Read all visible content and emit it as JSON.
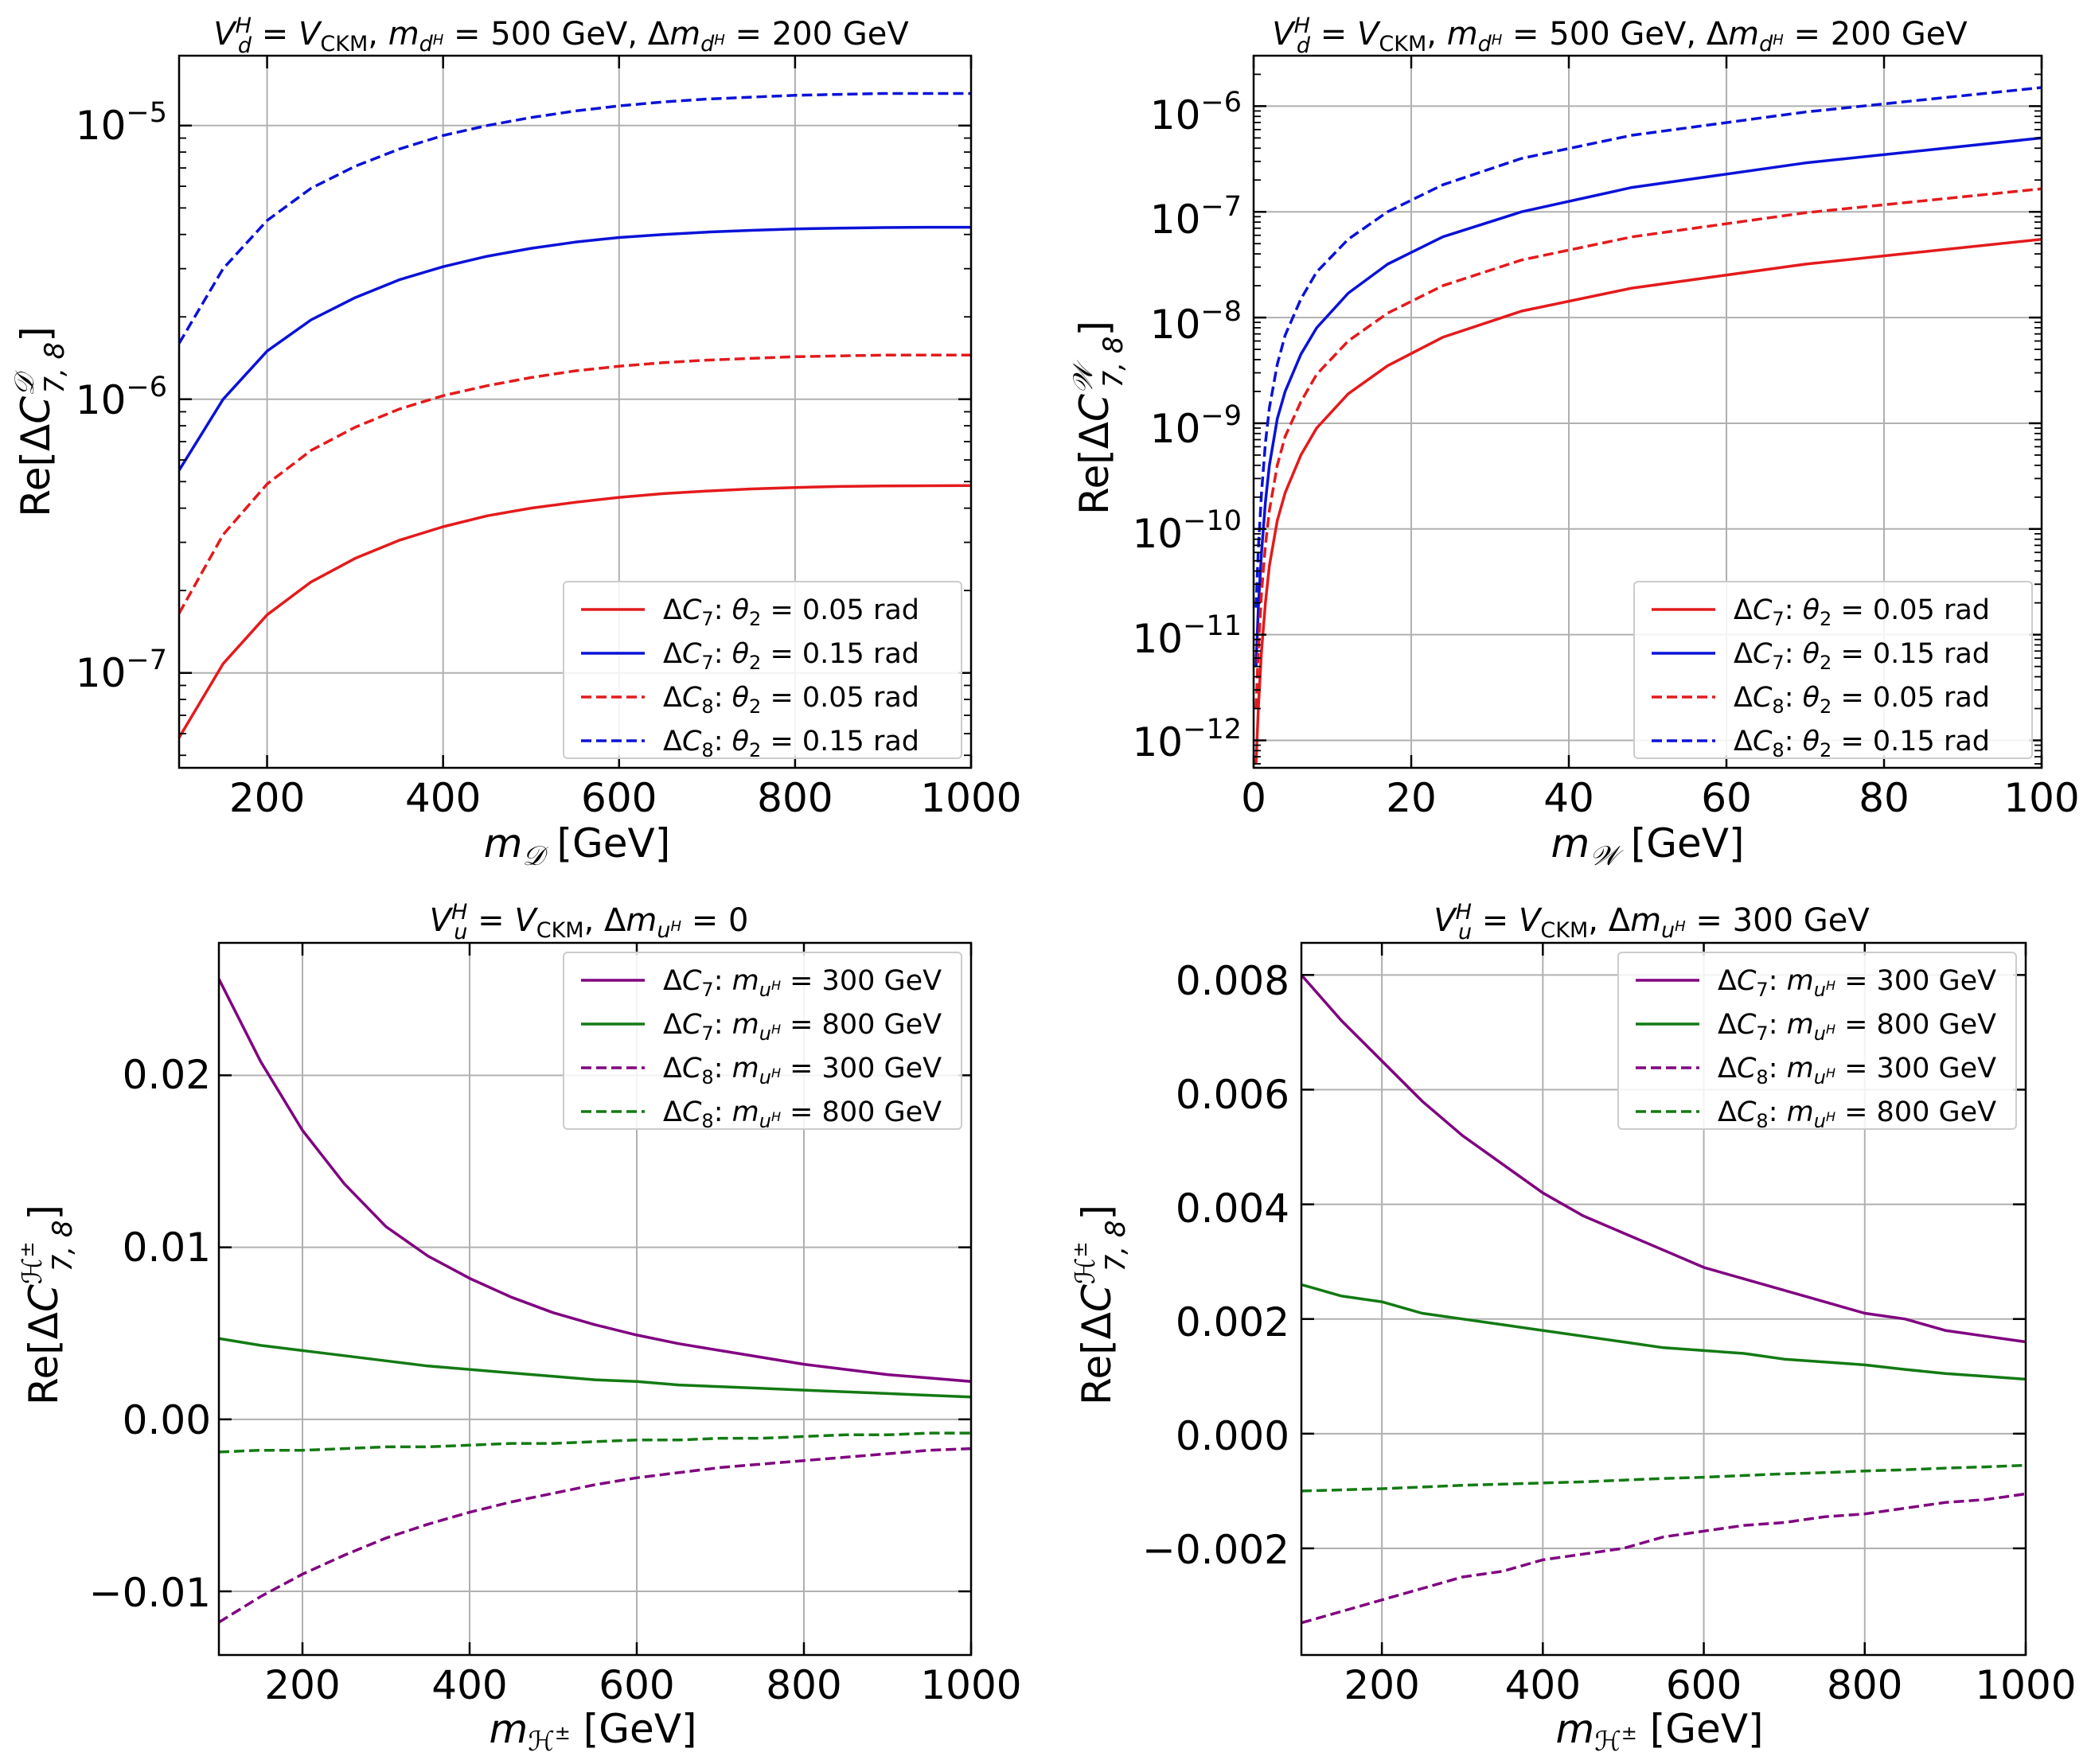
{
  "chart_data": [
    {
      "type": "line",
      "title": "V_d^H = V_CKM, m_{d^H} = 500 GeV, Δm_{d^H} = 200 GeV",
      "xlabel": "m_𝒟 [GeV]",
      "ylabel": "Re[ΔC_{7,8}^𝒟]",
      "xscale": "linear",
      "yscale": "log",
      "xlim": [
        100,
        1000
      ],
      "ylim": [
        4.5e-08,
        1.8e-05
      ],
      "xticks": [
        200,
        400,
        600,
        800,
        1000
      ],
      "yticks": [
        1e-07,
        1e-06,
        1e-05
      ],
      "ytick_labels": [
        {
          "base": "10",
          "exp": "−7"
        },
        {
          "base": "10",
          "exp": "−6"
        },
        {
          "base": "10",
          "exp": "−5"
        }
      ],
      "grid": true,
      "legend_position": "lower-right",
      "x": [
        100,
        150,
        200,
        250,
        300,
        350,
        400,
        450,
        500,
        550,
        600,
        650,
        700,
        750,
        800,
        850,
        900,
        950,
        1000
      ],
      "series": [
        {
          "name": "ΔC₇: θ₂ = 0.05 rad",
          "color": "#e41a1c",
          "dash": "solid",
          "values": [
            5.8e-08,
            1.08e-07,
            1.63e-07,
            2.15e-07,
            2.62e-07,
            3.05e-07,
            3.42e-07,
            3.75e-07,
            4e-07,
            4.2e-07,
            4.38e-07,
            4.52e-07,
            4.62e-07,
            4.7e-07,
            4.76e-07,
            4.8e-07,
            4.82e-07,
            4.83e-07,
            4.84e-07
          ]
        },
        {
          "name": "ΔC₇: θ₂ = 0.15 rad",
          "color": "#0a12d8",
          "dash": "solid",
          "values": [
            5.5e-07,
            1e-06,
            1.5e-06,
            1.95e-06,
            2.35e-06,
            2.73e-06,
            3.05e-06,
            3.33e-06,
            3.56e-06,
            3.75e-06,
            3.9e-06,
            4e-06,
            4.08e-06,
            4.14e-06,
            4.19e-06,
            4.22e-06,
            4.24e-06,
            4.25e-06,
            4.25e-06
          ]
        },
        {
          "name": "ΔC₈: θ₂ = 0.05 rad",
          "color": "#e41a1c",
          "dash": "dashed",
          "values": [
            1.65e-07,
            3.2e-07,
            4.9e-07,
            6.5e-07,
            7.9e-07,
            9.2e-07,
            1.03e-06,
            1.12e-06,
            1.2e-06,
            1.27e-06,
            1.32e-06,
            1.36e-06,
            1.39e-06,
            1.41e-06,
            1.43e-06,
            1.44e-06,
            1.45e-06,
            1.45e-06,
            1.45e-06
          ]
        },
        {
          "name": "ΔC₈: θ₂ = 0.15 rad",
          "color": "#0a12d8",
          "dash": "dashed",
          "values": [
            1.6e-06,
            3e-06,
            4.5e-06,
            5.9e-06,
            7.1e-06,
            8.2e-06,
            9.2e-06,
            1e-05,
            1.07e-05,
            1.13e-05,
            1.18e-05,
            1.22e-05,
            1.25e-05,
            1.27e-05,
            1.29e-05,
            1.3e-05,
            1.31e-05,
            1.31e-05,
            1.31e-05
          ]
        }
      ]
    },
    {
      "type": "line",
      "title": "V_d^H = V_CKM, m_{d^H} = 500 GeV, Δm_{d^H} = 200 GeV",
      "xlabel": "m_𝒲 [GeV]",
      "ylabel": "Re[ΔC_{7,8}^𝒲]",
      "xscale": "linear",
      "yscale": "log",
      "xlim": [
        0,
        100
      ],
      "ylim": [
        5.5e-13,
        3e-06
      ],
      "xticks": [
        0,
        20,
        40,
        60,
        80,
        100
      ],
      "yticks": [
        1e-12,
        1e-11,
        1e-10,
        1e-09,
        1e-08,
        1e-07,
        1e-06
      ],
      "ytick_labels": [
        {
          "base": "10",
          "exp": "−12"
        },
        {
          "base": "10",
          "exp": "−11"
        },
        {
          "base": "10",
          "exp": "−10"
        },
        {
          "base": "10",
          "exp": "−9"
        },
        {
          "base": "10",
          "exp": "−8"
        },
        {
          "base": "10",
          "exp": "−7"
        },
        {
          "base": "10",
          "exp": "−6"
        }
      ],
      "grid": true,
      "legend_position": "lower-right",
      "x": [
        0.3,
        0.6,
        1,
        1.5,
        2,
        3,
        4,
        6,
        8,
        12,
        17,
        24,
        34,
        48,
        70,
        100
      ],
      "series": [
        {
          "name": "ΔC₇: θ₂ = 0.05 rad",
          "color": "#e41a1c",
          "dash": "solid",
          "values": [
            6e-13,
            2e-12,
            7e-12,
            2e-11,
            4.5e-11,
            1.2e-10,
            2.2e-10,
            5e-10,
            9e-10,
            1.9e-09,
            3.5e-09,
            6.5e-09,
            1.15e-08,
            1.9e-08,
            3.2e-08,
            5.5e-08
          ]
        },
        {
          "name": "ΔC₇: θ₂ = 0.15 rad",
          "color": "#0a12d8",
          "dash": "solid",
          "values": [
            5e-12,
            1.8e-11,
            6e-11,
            1.8e-10,
            4e-10,
            1.1e-09,
            2e-09,
            4.5e-09,
            8e-09,
            1.7e-08,
            3.2e-08,
            5.8e-08,
            1e-07,
            1.7e-07,
            2.9e-07,
            5e-07
          ]
        },
        {
          "name": "ΔC₈: θ₂ = 0.05 rad",
          "color": "#e41a1c",
          "dash": "dashed",
          "values": [
            2e-12,
            7e-12,
            2.5e-11,
            7e-11,
            1.5e-10,
            4e-10,
            7.5e-10,
            1.6e-09,
            2.9e-09,
            6e-09,
            1.1e-08,
            2e-08,
            3.5e-08,
            5.8e-08,
            9.8e-08,
            1.65e-07
          ]
        },
        {
          "name": "ΔC₈: θ₂ = 0.15 rad",
          "color": "#0a12d8",
          "dash": "dashed",
          "values": [
            1.8e-11,
            6.5e-11,
            2.2e-10,
            6.5e-10,
            1.4e-09,
            3.6e-09,
            6.8e-09,
            1.5e-08,
            2.7e-08,
            5.5e-08,
            1e-07,
            1.8e-07,
            3.2e-07,
            5.3e-07,
            8.8e-07,
            1.5e-06
          ]
        }
      ]
    },
    {
      "type": "line",
      "title": "V_u^H = V_CKM, Δm_{u^H} = 0",
      "xlabel": "m_{ℋ^±} [GeV]",
      "ylabel": "Re[ΔC_{7,8}^{ℋ^±}]",
      "xscale": "linear",
      "yscale": "linear",
      "xlim": [
        100,
        1000
      ],
      "ylim": [
        -0.0137,
        0.0277
      ],
      "xticks": [
        200,
        400,
        600,
        800,
        1000
      ],
      "yticks": [
        -0.01,
        0.0,
        0.01,
        0.02
      ],
      "ytick_labels": [
        "−0.01",
        "0.00",
        "0.01",
        "0.02"
      ],
      "grid": true,
      "legend_position": "upper-right",
      "x": [
        100,
        150,
        200,
        250,
        300,
        350,
        400,
        450,
        500,
        550,
        600,
        650,
        700,
        750,
        800,
        850,
        900,
        950,
        1000
      ],
      "series": [
        {
          "name": "ΔC₇: m_{u^H} = 300 GeV",
          "color": "#800080",
          "dash": "solid",
          "values": [
            0.0256,
            0.0208,
            0.0168,
            0.0137,
            0.0112,
            0.0095,
            0.0082,
            0.0071,
            0.0062,
            0.0055,
            0.0049,
            0.0044,
            0.004,
            0.0036,
            0.0032,
            0.0029,
            0.0026,
            0.0024,
            0.0022
          ]
        },
        {
          "name": "ΔC₇: m_{u^H} = 800 GeV",
          "color": "#137a13",
          "dash": "solid",
          "values": [
            0.0047,
            0.0043,
            0.004,
            0.0037,
            0.0034,
            0.0031,
            0.0029,
            0.0027,
            0.0025,
            0.0023,
            0.0022,
            0.002,
            0.0019,
            0.0018,
            0.0017,
            0.0016,
            0.0015,
            0.0014,
            0.0013
          ]
        },
        {
          "name": "ΔC₈: m_{u^H} = 300 GeV",
          "color": "#800080",
          "dash": "dashed",
          "values": [
            -0.0118,
            -0.0103,
            -0.009,
            -0.0079,
            -0.0069,
            -0.0061,
            -0.0054,
            -0.0048,
            -0.0043,
            -0.0038,
            -0.0034,
            -0.0031,
            -0.0028,
            -0.0026,
            -0.0024,
            -0.0022,
            -0.002,
            -0.0018,
            -0.0017
          ]
        },
        {
          "name": "ΔC₈: m_{u^H} = 800 GeV",
          "color": "#137a13",
          "dash": "dashed",
          "values": [
            -0.0019,
            -0.0018,
            -0.0018,
            -0.0017,
            -0.0016,
            -0.0016,
            -0.0015,
            -0.0014,
            -0.0014,
            -0.0013,
            -0.0012,
            -0.0012,
            -0.0011,
            -0.0011,
            -0.001,
            -0.0009,
            -0.0009,
            -0.0008,
            -0.0008
          ]
        }
      ]
    },
    {
      "type": "line",
      "title": "V_u^H = V_CKM, Δm_{u^H} = 300 GeV",
      "xlabel": "m_{ℋ^±} [GeV]",
      "ylabel": "Re[ΔC_{7,8}^{ℋ^±}]",
      "xscale": "linear",
      "yscale": "linear",
      "xlim": [
        100,
        1000
      ],
      "ylim": [
        -0.00386,
        0.00856
      ],
      "xticks": [
        200,
        400,
        600,
        800,
        1000
      ],
      "yticks": [
        -0.002,
        0.0,
        0.002,
        0.004,
        0.006,
        0.008
      ],
      "ytick_labels": [
        "−0.002",
        "0.000",
        "0.002",
        "0.004",
        "0.006",
        "0.008"
      ],
      "grid": true,
      "legend_position": "upper-right",
      "x": [
        100,
        150,
        200,
        250,
        300,
        350,
        400,
        450,
        500,
        550,
        600,
        650,
        700,
        750,
        800,
        850,
        900,
        950,
        1000
      ],
      "series": [
        {
          "name": "ΔC₇: m_{u^H} = 300 GeV",
          "color": "#800080",
          "dash": "solid",
          "values": [
            0.008,
            0.0072,
            0.0065,
            0.0058,
            0.0052,
            0.0047,
            0.0042,
            0.0038,
            0.0035,
            0.0032,
            0.0029,
            0.0027,
            0.0025,
            0.0023,
            0.0021,
            0.002,
            0.0018,
            0.0017,
            0.0016
          ]
        },
        {
          "name": "ΔC₇: m_{u^H} = 800 GeV",
          "color": "#137a13",
          "dash": "solid",
          "values": [
            0.0026,
            0.0024,
            0.0023,
            0.0021,
            0.002,
            0.0019,
            0.0018,
            0.0017,
            0.0016,
            0.0015,
            0.00145,
            0.0014,
            0.0013,
            0.00125,
            0.0012,
            0.00112,
            0.00105,
            0.001,
            0.00095
          ]
        },
        {
          "name": "ΔC₈: m_{u^H} = 300 GeV",
          "color": "#800080",
          "dash": "dashed",
          "values": [
            -0.0033,
            -0.0031,
            -0.0029,
            -0.0027,
            -0.0025,
            -0.0024,
            -0.0022,
            -0.0021,
            -0.002,
            -0.0018,
            -0.0017,
            -0.0016,
            -0.00155,
            -0.00145,
            -0.0014,
            -0.0013,
            -0.0012,
            -0.00115,
            -0.00105
          ]
        },
        {
          "name": "ΔC₈: m_{u^H} = 800 GeV",
          "color": "#137a13",
          "dash": "dashed",
          "values": [
            -0.001,
            -0.00098,
            -0.00096,
            -0.00093,
            -0.0009,
            -0.00088,
            -0.00086,
            -0.00084,
            -0.00081,
            -0.00078,
            -0.00076,
            -0.00073,
            -0.0007,
            -0.00068,
            -0.00065,
            -0.00063,
            -0.0006,
            -0.00058,
            -0.00055
          ]
        }
      ]
    }
  ]
}
